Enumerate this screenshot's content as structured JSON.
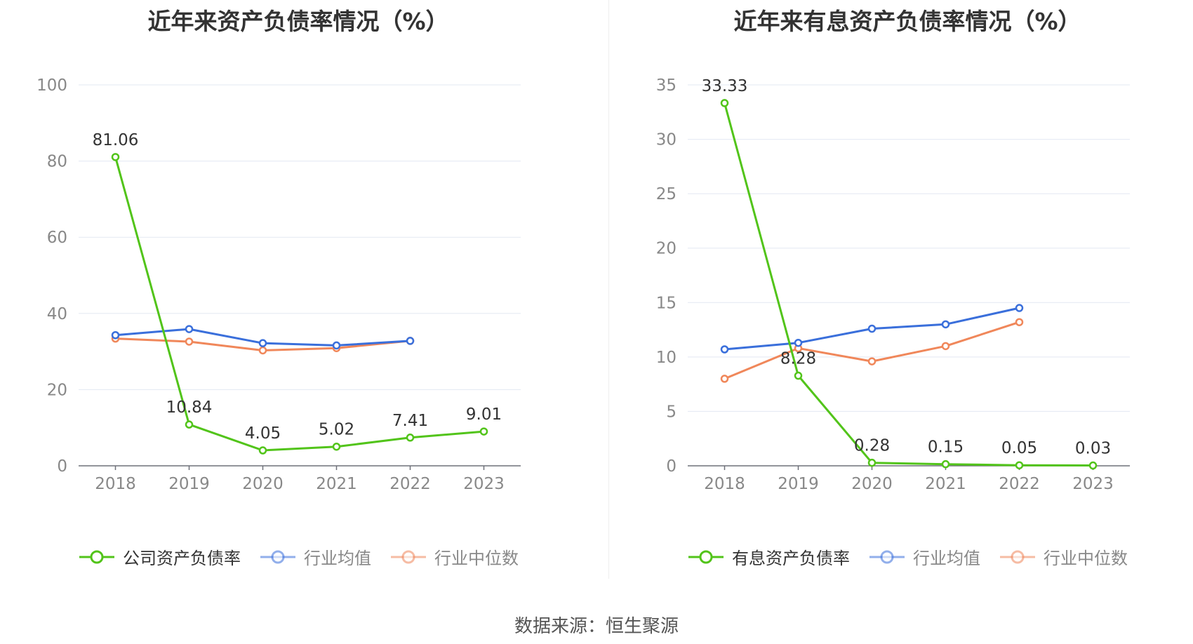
{
  "source_text": "数据来源：恒生聚源",
  "chart_data": [
    {
      "type": "line",
      "title": "近年来资产负债率情况（%）",
      "categories": [
        "2018",
        "2019",
        "2020",
        "2021",
        "2022",
        "2023"
      ],
      "ylim": [
        0,
        100
      ],
      "yticks": [
        "0",
        "20",
        "40",
        "60",
        "80",
        "100"
      ],
      "grid": true,
      "legend_placement": "bottom",
      "series": [
        {
          "name": "公司资产负债率",
          "color": "#52c41a",
          "values": [
            81.06,
            10.84,
            4.05,
            5.02,
            7.41,
            9.01
          ],
          "labels": [
            "81.06",
            "10.84",
            "4.05",
            "5.02",
            "7.41",
            "9.01"
          ],
          "legend_state": "active"
        },
        {
          "name": "行业均值",
          "color": "#3a6fdb",
          "values": [
            34.3,
            35.9,
            32.2,
            31.6,
            32.8,
            null
          ],
          "labels": [],
          "legend_state": "muted"
        },
        {
          "name": "行业中位数",
          "color": "#f0875a",
          "values": [
            33.4,
            32.6,
            30.3,
            30.9,
            32.8,
            null
          ],
          "labels": [],
          "legend_state": "muted"
        }
      ]
    },
    {
      "type": "line",
      "title": "近年来有息资产负债率情况（%）",
      "categories": [
        "2018",
        "2019",
        "2020",
        "2021",
        "2022",
        "2023"
      ],
      "ylim": [
        0,
        35
      ],
      "yticks": [
        "0",
        "5",
        "10",
        "15",
        "20",
        "25",
        "30",
        "35"
      ],
      "grid": true,
      "legend_placement": "bottom",
      "series": [
        {
          "name": "有息资产负债率",
          "color": "#52c41a",
          "values": [
            33.33,
            8.28,
            0.28,
            0.15,
            0.05,
            0.03
          ],
          "labels": [
            "33.33",
            "8.28",
            "0.28",
            "0.15",
            "0.05",
            "0.03"
          ],
          "legend_state": "active"
        },
        {
          "name": "行业均值",
          "color": "#3a6fdb",
          "values": [
            10.7,
            11.3,
            12.6,
            13.0,
            14.5,
            null
          ],
          "labels": [],
          "legend_state": "muted"
        },
        {
          "name": "行业中位数",
          "color": "#f0875a",
          "values": [
            8.0,
            10.8,
            9.6,
            11.0,
            13.2,
            null
          ],
          "labels": [],
          "legend_state": "muted"
        }
      ]
    }
  ]
}
